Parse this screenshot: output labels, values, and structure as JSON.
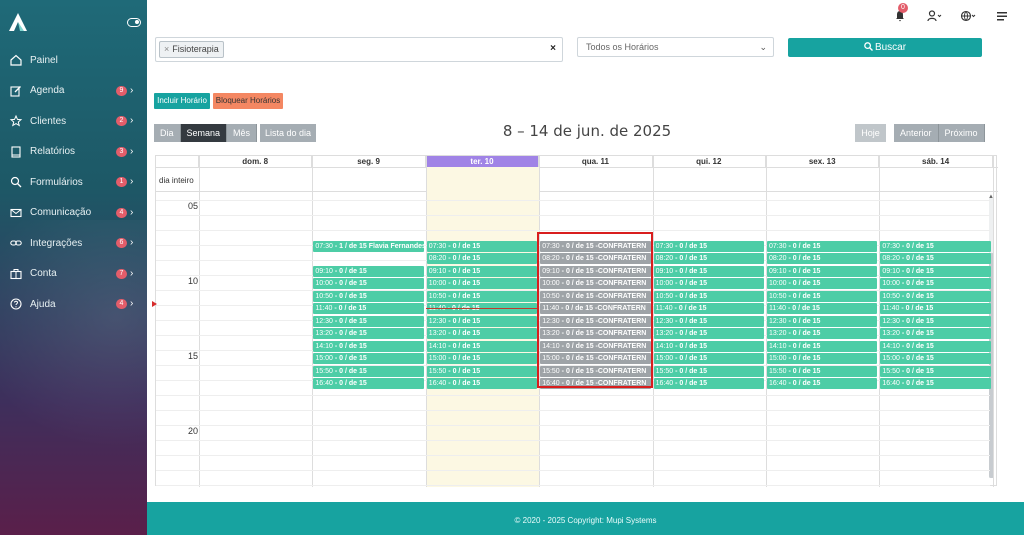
{
  "sidebar": {
    "items": [
      {
        "label": "Painel",
        "icon": "home-icon",
        "badge": ""
      },
      {
        "label": "Agenda",
        "icon": "edit-icon",
        "badge": "9"
      },
      {
        "label": "Clientes",
        "icon": "star-icon",
        "badge": "2"
      },
      {
        "label": "Relatórios",
        "icon": "book-icon",
        "badge": "3"
      },
      {
        "label": "Formulários",
        "icon": "search-icon",
        "badge": "1"
      },
      {
        "label": "Comunicação",
        "icon": "mail-icon",
        "badge": "4"
      },
      {
        "label": "Integrações",
        "icon": "link-icon",
        "badge": "6"
      },
      {
        "label": "Conta",
        "icon": "briefcase-icon",
        "badge": "7"
      },
      {
        "label": "Ajuda",
        "icon": "question-icon",
        "badge": "4"
      }
    ]
  },
  "topbar": {
    "notification_count": "0"
  },
  "filter": {
    "chip": "Fisioterapia",
    "chip_remove": "×",
    "clear": "×"
  },
  "schedule_select": {
    "value": "Todos os Horários"
  },
  "buttons": {
    "buscar": "Buscar",
    "incluir": "Incluir Horário",
    "bloquear": "Bloquear Horários",
    "dia": "Dia",
    "semana": "Semana",
    "mes": "Mês",
    "lista": "Lista do dia",
    "hoje": "Hoje",
    "anterior": "Anterior",
    "proximo": "Próximo"
  },
  "calendar": {
    "title": "8 – 14 de jun. de 2025",
    "allday_label": "dia inteiro",
    "days": [
      "dom. 8",
      "seg. 9",
      "ter. 10",
      "qua. 11",
      "qui. 12",
      "sex. 13",
      "sáb. 14"
    ],
    "hours": [
      "05",
      "10",
      "15",
      "20"
    ],
    "slot_times": [
      "07:30",
      "08:20",
      "09:10",
      "10:00",
      "10:50",
      "11:40",
      "12:30",
      "13:20",
      "14:10",
      "15:00",
      "15:50",
      "16:40"
    ],
    "default_label": "0 / de 15",
    "confra_label": "0 / de 15 -CONFRATERN",
    "seg_first_label": "1 / de 15 Flavia Fernandes"
  },
  "footer": {
    "text": "© 2020 - 2025 Copyright: Mupi Systems"
  },
  "colors": {
    "accent": "#17a3a0",
    "event": "#4dcda6",
    "blocked": "#9ea3a7",
    "today": "#a083e6"
  }
}
